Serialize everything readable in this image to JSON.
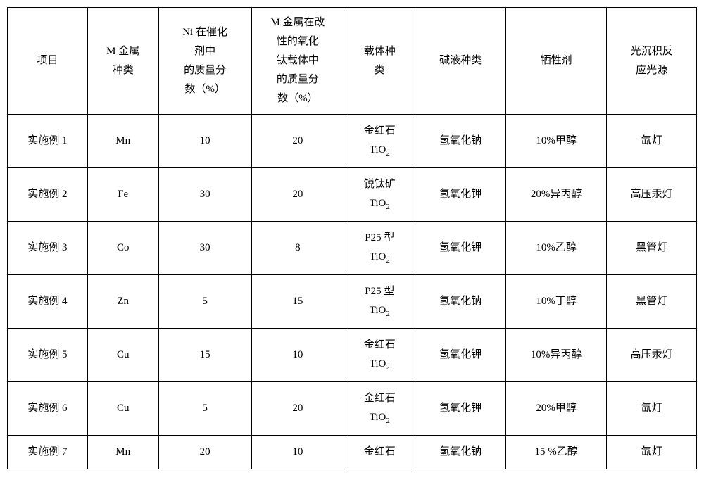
{
  "table": {
    "columns": [
      "项目",
      "M 金属\n种类",
      "Ni 在催化\n剂中\n的质量分\n数（%）",
      "M 金属在改\n性的氧化\n钛载体中\n的质量分\n数（%）",
      "载体种\n类",
      "碱液种类",
      "牺牲剂",
      "光沉积反\n应光源"
    ],
    "rows": [
      {
        "label": "实施例 1",
        "metal": "Mn",
        "ni_pct": "10",
        "m_pct": "20",
        "carrier_a": "金红石",
        "carrier_b": "TiO",
        "alkali": "氢氧化钠",
        "sacrifice": "10%甲醇",
        "light": "氙灯"
      },
      {
        "label": "实施例 2",
        "metal": "Fe",
        "ni_pct": "30",
        "m_pct": "20",
        "carrier_a": "锐钛矿",
        "carrier_b": "TiO",
        "alkali": "氢氧化钾",
        "sacrifice": "20%异丙醇",
        "light": "高压汞灯"
      },
      {
        "label": "实施例 3",
        "metal": "Co",
        "ni_pct": "30",
        "m_pct": "8",
        "carrier_a": "P25 型",
        "carrier_b": "TiO",
        "alkali": "氢氧化钾",
        "sacrifice": "10%乙醇",
        "light": "黑管灯"
      },
      {
        "label": "实施例 4",
        "metal": "Zn",
        "ni_pct": "5",
        "m_pct": "15",
        "carrier_a": "P25 型",
        "carrier_b": "TiO",
        "alkali": "氢氧化钠",
        "sacrifice": "10%丁醇",
        "light": "黑管灯"
      },
      {
        "label": "实施例 5",
        "metal": "Cu",
        "ni_pct": "15",
        "m_pct": "10",
        "carrier_a": "金红石",
        "carrier_b": "TiO",
        "alkali": "氢氧化钾",
        "sacrifice": "10%异丙醇",
        "light": "高压汞灯"
      },
      {
        "label": "实施例 6",
        "metal": "Cu",
        "ni_pct": "5",
        "m_pct": "20",
        "carrier_a": "金红石",
        "carrier_b": "TiO",
        "alkali": "氢氧化钾",
        "sacrifice": "20%甲醇",
        "light": "氙灯"
      },
      {
        "label": "实施例 7",
        "metal": "Mn",
        "ni_pct": "20",
        "m_pct": "10",
        "carrier_a": "金红石",
        "carrier_b": "",
        "alkali": "氢氧化钠",
        "sacrifice": "15 %乙醇",
        "light": "氙灯"
      }
    ],
    "border_color": "#000000",
    "bg_color": "#ffffff",
    "font_size": 15,
    "sub_text": "2"
  }
}
